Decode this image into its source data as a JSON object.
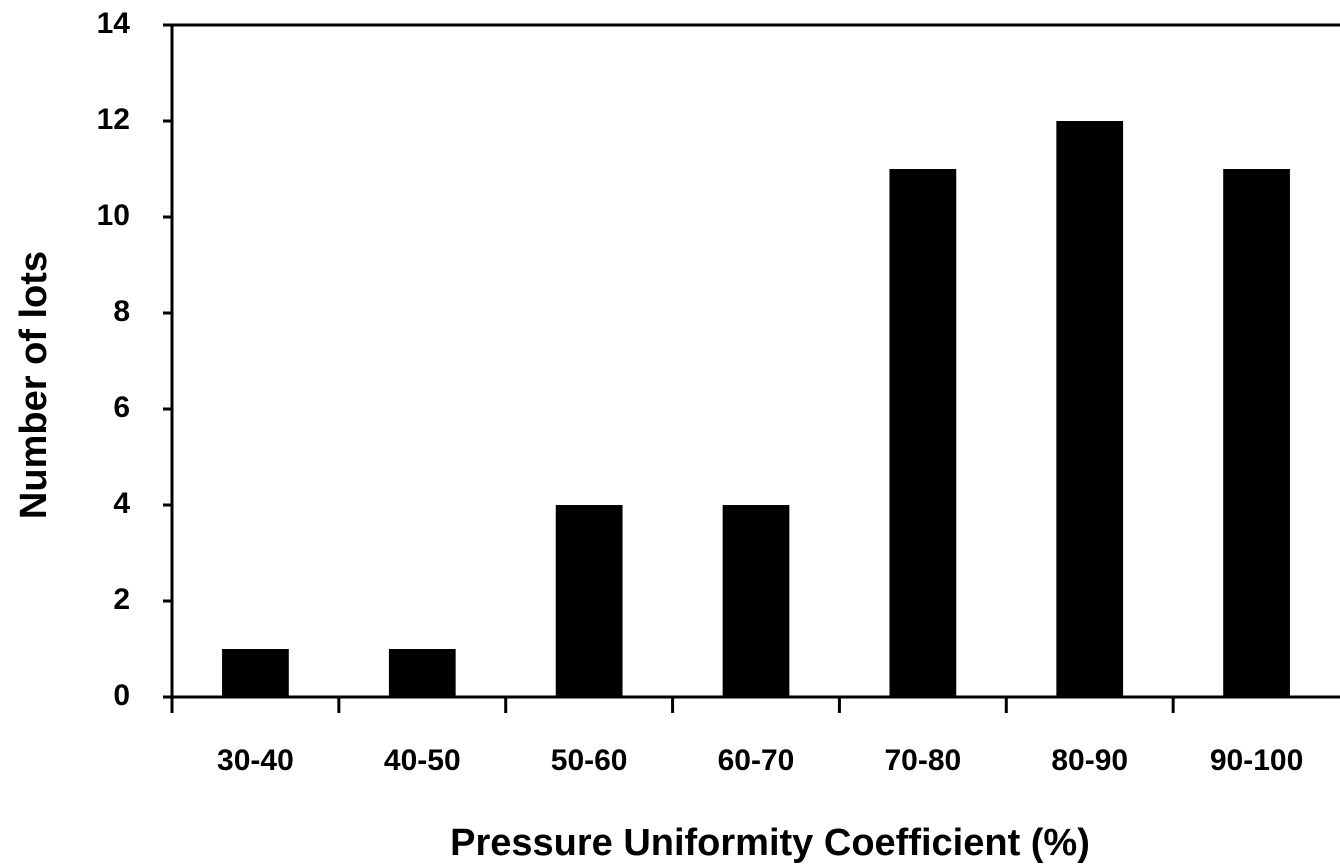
{
  "chart_data": {
    "type": "bar",
    "x_label": "Pressure Uniformity Coefficient (%)",
    "y_label": "Number of lots",
    "categories": [
      "30-40",
      "40-50",
      "50-60",
      "60-70",
      "70-80",
      "80-90",
      "90-100"
    ],
    "values": [
      1,
      1,
      4,
      4,
      11,
      12,
      11
    ],
    "color": "#000000",
    "ylim": [
      0,
      14
    ],
    "yticks": [
      0,
      2,
      4,
      6,
      8,
      10,
      12,
      14
    ],
    "grid": false
  }
}
